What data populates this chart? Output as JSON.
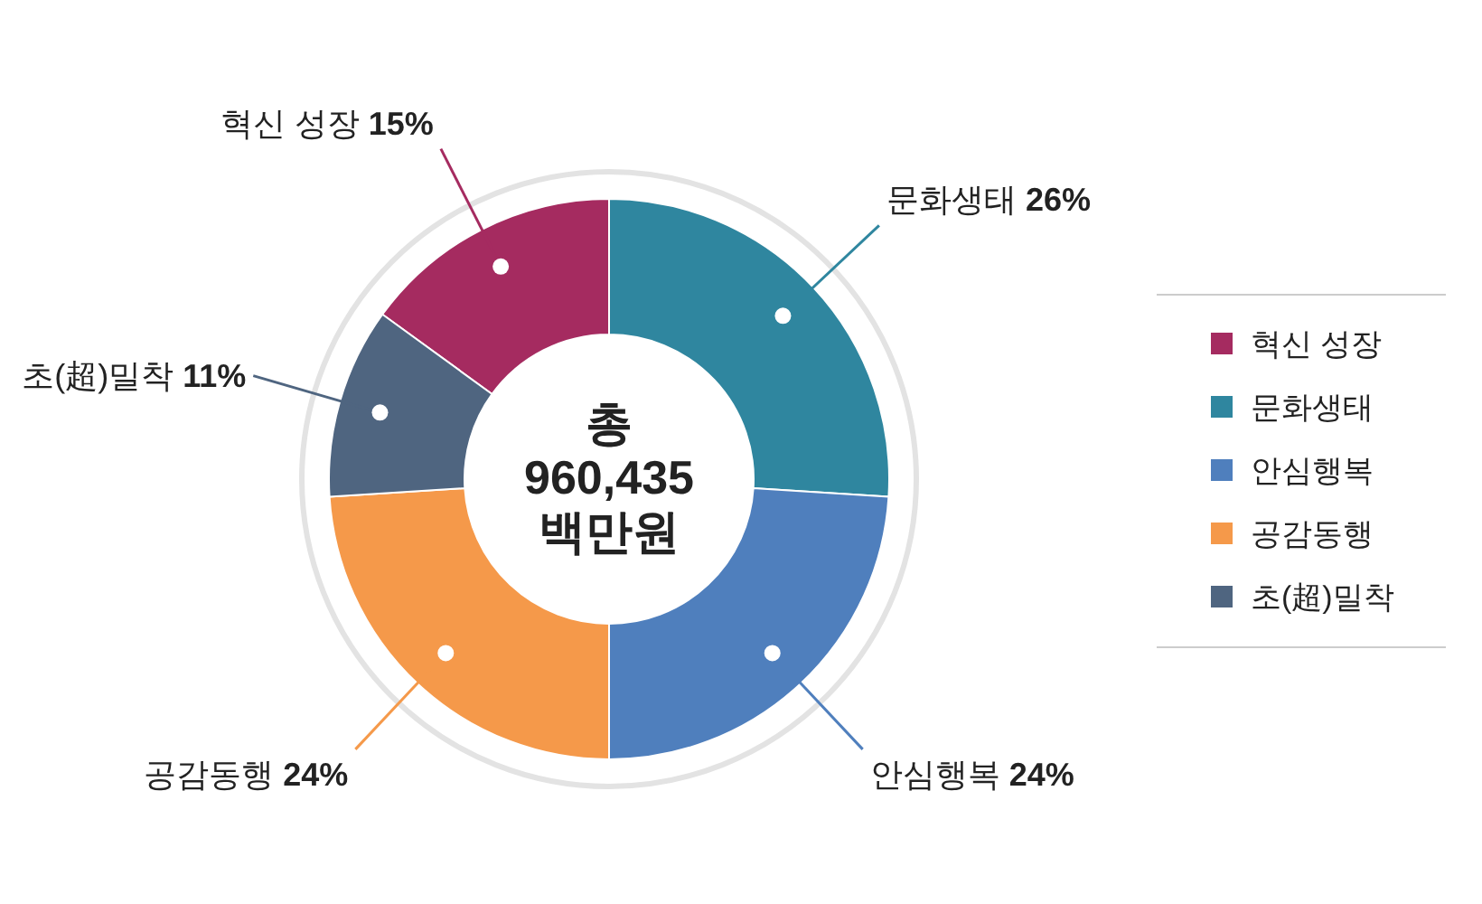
{
  "chart_data": {
    "type": "donut",
    "categories": [
      "혁신 성장",
      "문화생태",
      "안심행복",
      "공감동행",
      "초(超)밀착"
    ],
    "values": [
      15,
      26,
      24,
      24,
      11
    ],
    "value_labels": [
      "15%",
      "26%",
      "24%",
      "24%",
      "11%"
    ],
    "colors": [
      "#a52b60",
      "#2f869f",
      "#4f7fbd",
      "#f5994a",
      "#4f6580"
    ],
    "annotations": [
      "총",
      "960,435",
      "백만원"
    ],
    "legend": "right"
  }
}
